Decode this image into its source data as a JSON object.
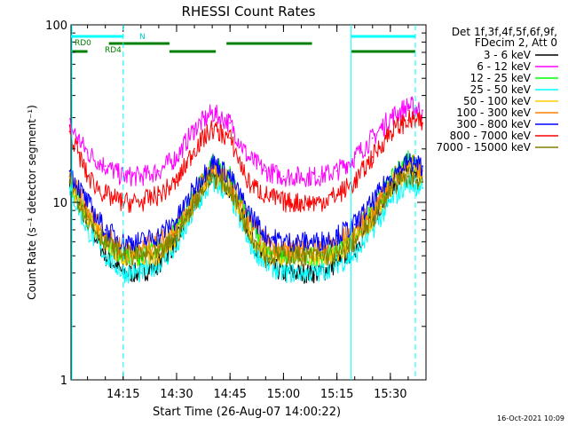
{
  "colors": {
    "background": "#ffffff",
    "axes": "#000000",
    "dashed_marker": "#00ffff",
    "attenuator_bar": "#00ffff",
    "decimation_bar": "#008000"
  },
  "chart_data": {
    "type": "line",
    "title": "RHESSI Count Rates",
    "xlabel": "Start Time (26-Aug-07 14:00:22)",
    "ylabel": "Count Rate (s⁻¹ detector segment⁻¹)",
    "yscale": "log",
    "ylim": [
      1,
      100
    ],
    "xlim": [
      "14:00:22",
      "15:40:00"
    ],
    "x_ticks": [
      "14:15",
      "14:30",
      "14:45",
      "15:00",
      "15:15",
      "15:30"
    ],
    "y_ticks": [
      "1",
      "10",
      "100"
    ],
    "grid": false,
    "legend_position": "outside-right",
    "legend_header": [
      "Det 1f,3f,4f,5f,6f,9f,",
      "FDecim 2, Att 0"
    ],
    "timestamp": "16-Oct-2021 10:09",
    "x": [
      "14:00",
      "14:05",
      "14:10",
      "14:15",
      "14:20",
      "14:25",
      "14:30",
      "14:35",
      "14:40",
      "14:45",
      "14:50",
      "14:55",
      "15:00",
      "15:05",
      "15:10",
      "15:15",
      "15:20",
      "15:25",
      "15:30",
      "15:35",
      "15:39"
    ],
    "series": [
      {
        "name": "3 - 6 keV",
        "color": "#000000",
        "values": [
          14,
          8,
          5,
          4,
          4,
          4.5,
          6,
          10,
          15,
          12,
          7,
          4.5,
          4,
          4,
          4,
          4.5,
          5.5,
          8,
          12,
          15,
          13
        ]
      },
      {
        "name": "6 - 12 keV",
        "color": "#ff00ff",
        "values": [
          27,
          19,
          16,
          14,
          14,
          15,
          18,
          26,
          32,
          28,
          18,
          15,
          14,
          14,
          14,
          15,
          18,
          23,
          30,
          35,
          33
        ]
      },
      {
        "name": "12 - 25 keV",
        "color": "#00ff00",
        "values": [
          13,
          8,
          6,
          5,
          5,
          5.5,
          7,
          11,
          17,
          14,
          8,
          5.5,
          5,
          5,
          5,
          5.5,
          6.5,
          9,
          13,
          18,
          16
        ]
      },
      {
        "name": "25 - 50 keV",
        "color": "#00ffff",
        "values": [
          12,
          7,
          5,
          4,
          4,
          4.5,
          5.5,
          9,
          13,
          11,
          6,
          4.5,
          4,
          4,
          4,
          4.5,
          5,
          7,
          10,
          13,
          12
        ]
      },
      {
        "name": "50 - 100 keV",
        "color": "#ffcc00",
        "values": [
          13,
          8,
          6,
          5,
          5,
          5,
          6.5,
          10,
          15,
          12,
          7,
          5,
          5,
          5,
          5,
          5,
          6,
          8,
          12,
          15,
          14
        ]
      },
      {
        "name": "100 - 300 keV",
        "color": "#ff8000",
        "values": [
          14,
          9,
          6.5,
          5.5,
          5.5,
          6,
          7.5,
          11,
          16,
          13,
          8,
          6,
          5.5,
          5.5,
          5.5,
          6,
          7,
          9,
          13,
          17,
          15
        ]
      },
      {
        "name": "300 - 800 keV",
        "color": "#0000ff",
        "values": [
          15,
          10,
          7,
          6,
          6,
          6.5,
          8,
          12,
          17,
          14,
          9,
          6.5,
          6,
          6,
          6,
          6.5,
          7.5,
          10,
          14,
          17,
          16
        ]
      },
      {
        "name": "800 - 7000 keV",
        "color": "#ff0000",
        "values": [
          25,
          14,
          11,
          10,
          10,
          11,
          13,
          20,
          26,
          23,
          13,
          11,
          10,
          10,
          10,
          11,
          13,
          18,
          25,
          29,
          28
        ]
      },
      {
        "name": "7000 - 15000 keV",
        "color": "#808000",
        "values": [
          13,
          8,
          6,
          5,
          5,
          5,
          6.5,
          10,
          14,
          12,
          7,
          5,
          5,
          5,
          5,
          5,
          6,
          8,
          12,
          14,
          13
        ]
      }
    ],
    "annotations": {
      "attenuator_label": "N",
      "decimation_labels": [
        "RD0",
        "RD4"
      ],
      "markers": [
        "14:15",
        "15:19",
        "15:37"
      ]
    }
  }
}
